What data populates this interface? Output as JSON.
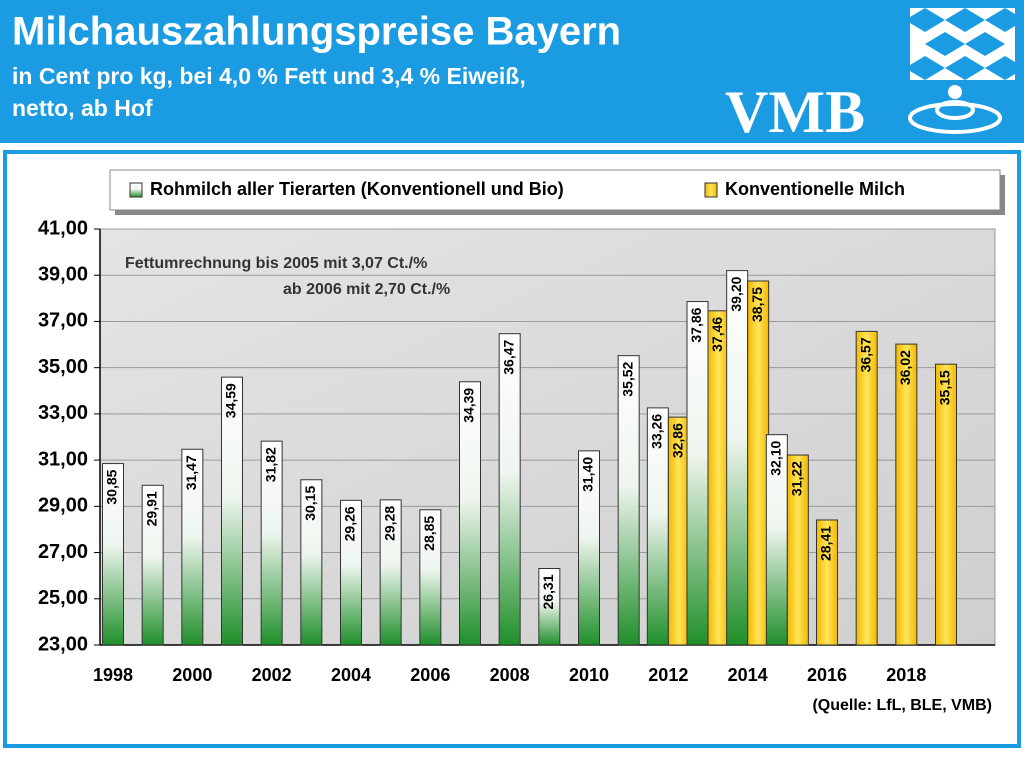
{
  "header": {
    "title": "Milchauszahlungspreise Bayern",
    "subtitle_lines": [
      "in Cent pro kg, bei 4,0 % Fett und 3,4 % Eiweiß,",
      "netto, ab Hof"
    ],
    "logo": "VMB"
  },
  "chart_data": {
    "type": "bar",
    "categories": [
      "1998",
      null,
      "2000",
      null,
      "2002",
      null,
      "2004",
      null,
      "2006",
      null,
      "2008",
      null,
      "2010",
      null,
      "2012",
      null,
      "2014",
      null,
      "2016",
      null,
      "2018",
      null
    ],
    "series": [
      {
        "name": "Rohmilch aller Tierarten (Konventionell und Bio)",
        "color": "#1f8f2a",
        "values": [
          30.85,
          29.91,
          31.47,
          34.59,
          31.82,
          30.15,
          29.26,
          29.28,
          28.85,
          34.39,
          36.47,
          26.31,
          31.4,
          35.52,
          33.26,
          37.86,
          39.2,
          32.1,
          null,
          null,
          null,
          null
        ],
        "value_labels": [
          "30,85",
          "29,91",
          "31,47",
          "34,59",
          "31,82",
          "30,15",
          "29,26",
          "29,28",
          "28,85",
          "34,39",
          "36,47",
          "26,31",
          "31,40",
          "35,52",
          "33,26",
          "37,86",
          "39,20",
          "32,10",
          null,
          null,
          null,
          null
        ]
      },
      {
        "name": "Konventionelle Milch",
        "color": "#f2b800",
        "values": [
          null,
          null,
          null,
          null,
          null,
          null,
          null,
          null,
          null,
          null,
          null,
          null,
          null,
          null,
          32.86,
          37.46,
          38.75,
          31.22,
          28.41,
          36.57,
          36.02,
          35.15
        ],
        "value_labels": [
          null,
          null,
          null,
          null,
          null,
          null,
          null,
          null,
          null,
          null,
          null,
          null,
          null,
          null,
          "32,86",
          "37,46",
          "38,75",
          "31,22",
          "28,41",
          "36,57",
          "36,02",
          "35,15"
        ]
      }
    ],
    "ylim": [
      23,
      41
    ],
    "yticks": [
      {
        "value": 23,
        "label": "23,00"
      },
      {
        "value": 25,
        "label": "25,00"
      },
      {
        "value": 27,
        "label": "27,00"
      },
      {
        "value": 29,
        "label": "29,00"
      },
      {
        "value": 31,
        "label": "31,00"
      },
      {
        "value": 33,
        "label": "33,00"
      },
      {
        "value": 35,
        "label": "35,00"
      },
      {
        "value": 37,
        "label": "37,00"
      },
      {
        "value": 39,
        "label": "39,00"
      },
      {
        "value": 41,
        "label": "41,00"
      }
    ],
    "grid": true,
    "legend": "top",
    "annotations": [
      "Fettumrechnung bis 2005 mit 3,07 Ct./%",
      "ab 2006 mit 2,70 Ct./%"
    ],
    "source": "(Quelle: LfL, BLE, VMB)"
  }
}
